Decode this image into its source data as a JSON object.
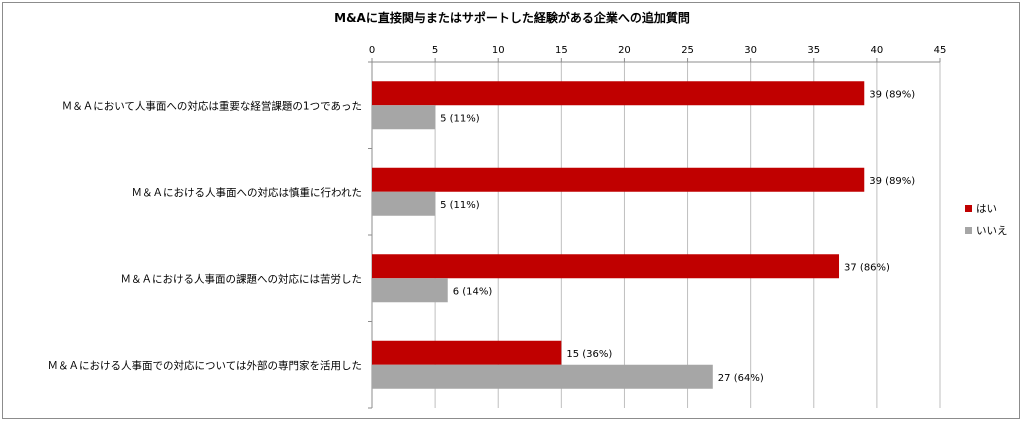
{
  "chart_data": {
    "type": "bar",
    "orientation": "horizontal",
    "title": "M&Aに直接関与またはサポートした経験がある企業への追加質問",
    "categories": [
      "Ｍ＆Ａにおいて人事面への対応は重要な経営課題の1つであった",
      "Ｍ＆Ａにおける人事面への対応は慎重に行われた",
      "Ｍ＆Ａにおける人事面の課題への対応には苦労した",
      "Ｍ＆Ａにおける人事面での対応については外部の専門家を活用した"
    ],
    "series": [
      {
        "name": "はい",
        "color": "#c00000",
        "values": [
          39,
          39,
          37,
          15
        ],
        "labels": [
          "39 (89%)",
          "39 (89%)",
          "37 (86%)",
          "15 (36%)"
        ]
      },
      {
        "name": "いいえ",
        "color": "#a6a6a6",
        "values": [
          5,
          5,
          6,
          27
        ],
        "labels": [
          "5 (11%)",
          "5 (11%)",
          "6 (14%)",
          "27 (64%)"
        ]
      }
    ],
    "xlim": [
      0,
      45
    ],
    "xticks": [
      0,
      5,
      10,
      15,
      20,
      25,
      30,
      35,
      40,
      45
    ],
    "axis_position": "top",
    "grid": true,
    "legend_position": "right"
  }
}
